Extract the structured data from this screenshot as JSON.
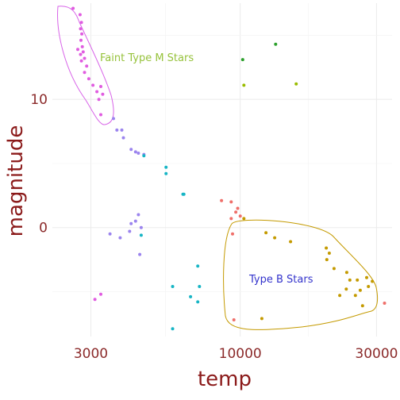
{
  "chart_data": {
    "type": "scatter",
    "xlabel": "temp",
    "ylabel": "magnitude",
    "x_scale": "log10",
    "y_reversed": true,
    "xlim": [
      2200,
      34000
    ],
    "ylim": [
      -17.5,
      8.5
    ],
    "x_ticks": [
      3000,
      10000,
      30000
    ],
    "x_tick_labels": [
      "3000",
      "10000",
      "30000"
    ],
    "y_ticks": [
      -10,
      0
    ],
    "y_tick_labels": [
      "10",
      "0"
    ],
    "grid": true,
    "legend": "none",
    "colors": {
      "type_m": "#e05ce0",
      "purple": "#9b84ee",
      "teal": "#17b5c5",
      "red": "#ef6f6a",
      "gold": "#c49a00",
      "green": "#2ca02c",
      "olive": "#9abc00",
      "m_ellipse": "#d864e8",
      "b_ellipse": "#c49a00",
      "m_annot": "#96c23b",
      "b_annot": "#3333cc"
    },
    "series": [
      {
        "color_key": "type_m",
        "points": [
          [
            2600,
            -17.1
          ],
          [
            2750,
            -16.6
          ],
          [
            2780,
            -16.0
          ],
          [
            2760,
            -15.5
          ],
          [
            2790,
            -15.1
          ],
          [
            2770,
            -14.6
          ],
          [
            2800,
            -14.1
          ],
          [
            2700,
            -13.9
          ],
          [
            2820,
            -13.7
          ],
          [
            2760,
            -13.5
          ],
          [
            2850,
            -13.2
          ],
          [
            2780,
            -13.0
          ],
          [
            2900,
            -12.6
          ],
          [
            2850,
            -12.1
          ],
          [
            2950,
            -11.6
          ],
          [
            3050,
            -11.1
          ],
          [
            3250,
            -11.0
          ],
          [
            3150,
            -10.6
          ],
          [
            3300,
            -10.4
          ],
          [
            3200,
            -10.0
          ],
          [
            3250,
            -8.8
          ],
          [
            3100,
            5.6
          ],
          [
            3250,
            5.2
          ]
        ]
      },
      {
        "color_key": "purple",
        "points": [
          [
            3600,
            -8.5
          ],
          [
            3700,
            -7.6
          ],
          [
            3850,
            -7.6
          ],
          [
            3900,
            -7.0
          ],
          [
            4150,
            -6.1
          ],
          [
            4300,
            -5.9
          ],
          [
            4400,
            -5.8
          ],
          [
            4600,
            -5.7
          ],
          [
            4400,
            -1.0
          ],
          [
            4300,
            -0.5
          ],
          [
            4150,
            -0.3
          ],
          [
            3500,
            0.5
          ],
          [
            3800,
            0.8
          ],
          [
            4500,
            0.0
          ],
          [
            4100,
            0.3
          ],
          [
            4450,
            2.1
          ]
        ]
      },
      {
        "color_key": "teal",
        "points": [
          [
            4600,
            -5.6
          ],
          [
            5500,
            -4.7
          ],
          [
            5500,
            -4.2
          ],
          [
            6300,
            -2.6
          ],
          [
            6350,
            -2.6
          ],
          [
            7100,
            3.0
          ],
          [
            5800,
            4.6
          ],
          [
            7200,
            4.6
          ],
          [
            6700,
            5.4
          ],
          [
            7100,
            5.8
          ],
          [
            5800,
            7.9
          ],
          [
            4500,
            0.6
          ]
        ]
      },
      {
        "color_key": "red",
        "points": [
          [
            8600,
            -2.1
          ],
          [
            9300,
            -2.0
          ],
          [
            9800,
            -1.5
          ],
          [
            9650,
            -1.2
          ],
          [
            9300,
            -0.7
          ],
          [
            10000,
            -0.9
          ],
          [
            9400,
            0.5
          ],
          [
            9500,
            7.2
          ],
          [
            32000,
            5.9
          ]
        ]
      },
      {
        "color_key": "gold",
        "points": [
          [
            10300,
            -0.7
          ],
          [
            12300,
            0.4
          ],
          [
            13200,
            0.8
          ],
          [
            15000,
            1.1
          ],
          [
            20000,
            1.6
          ],
          [
            20500,
            2.0
          ],
          [
            20100,
            2.5
          ],
          [
            21300,
            3.2
          ],
          [
            23600,
            3.5
          ],
          [
            24200,
            4.1
          ],
          [
            25700,
            4.1
          ],
          [
            27700,
            3.9
          ],
          [
            28100,
            4.6
          ],
          [
            23500,
            4.8
          ],
          [
            26300,
            4.9
          ],
          [
            25300,
            5.3
          ],
          [
            22300,
            5.3
          ],
          [
            26800,
            6.1
          ],
          [
            11900,
            7.1
          ],
          [
            29000,
            4.2
          ]
        ]
      },
      {
        "color_key": "green",
        "points": [
          [
            10200,
            -13.1
          ],
          [
            13300,
            -14.3
          ]
        ]
      },
      {
        "color_key": "olive",
        "points": [
          [
            10300,
            -11.1
          ],
          [
            15700,
            -11.2
          ]
        ]
      }
    ],
    "annotations": [
      {
        "text": "Faint Type M Stars",
        "color_key": "m_annot"
      },
      {
        "text": "Type B Stars",
        "color_key": "b_annot"
      }
    ]
  }
}
